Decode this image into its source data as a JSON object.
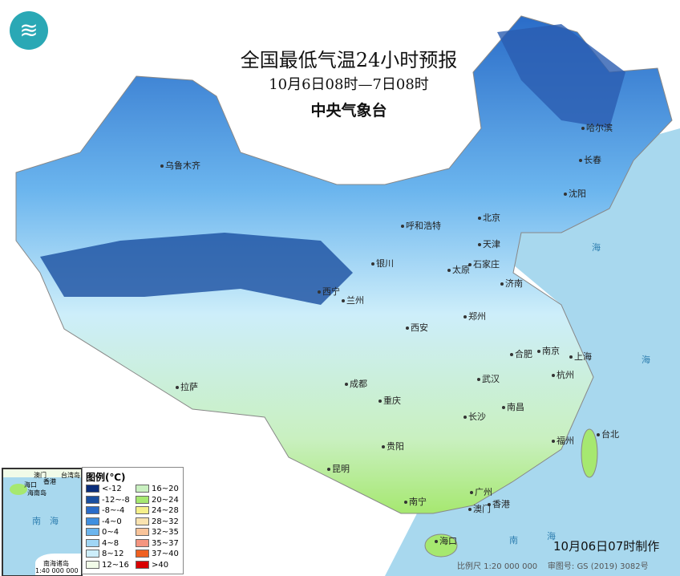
{
  "header": {
    "title": "全国最低气温24小时预报",
    "period": "10月6日08时—7日08时",
    "issuer": "中央气象台"
  },
  "logo": {
    "icon": "cma-logo-icon"
  },
  "cities": [
    "乌鲁木齐",
    "哈尔滨",
    "长春",
    "沈阳",
    "呼和浩特",
    "北京",
    "天津",
    "银川",
    "太原",
    "石家庄",
    "济南",
    "西宁",
    "兰州",
    "西安",
    "郑州",
    "合肥",
    "南京",
    "上海",
    "成都",
    "武汉",
    "杭州",
    "重庆",
    "拉萨",
    "长沙",
    "南昌",
    "贵阳",
    "福州",
    "台北",
    "昆明",
    "南宁",
    "广州",
    "香港",
    "澳门",
    "海口"
  ],
  "sea_labels": [
    "海",
    "海",
    "南",
    "海"
  ],
  "legend": {
    "title": "图例(℃)",
    "items": [
      {
        "label": "<-12",
        "color": "#0a2d7a"
      },
      {
        "label": "-12~-8",
        "color": "#1a4fa0"
      },
      {
        "label": "-8~-4",
        "color": "#2a6cc8"
      },
      {
        "label": "-4~0",
        "color": "#3f8fe0"
      },
      {
        "label": "0~4",
        "color": "#6bb5ee"
      },
      {
        "label": "4~8",
        "color": "#a0d6f5"
      },
      {
        "label": "8~12",
        "color": "#cdeefa"
      },
      {
        "label": "12~16",
        "color": "#f1fbe8"
      },
      {
        "label": "16~20",
        "color": "#c9f0c0"
      },
      {
        "label": "20~24",
        "color": "#a6e870"
      },
      {
        "label": "24~28",
        "color": "#f5f08a"
      },
      {
        "label": "28~32",
        "color": "#f9e3b0"
      },
      {
        "label": "32~35",
        "color": "#f9c49a"
      },
      {
        "label": "35~37",
        "color": "#f49580"
      },
      {
        "label": "37~40",
        "color": "#f06020"
      },
      {
        "label": ">40",
        "color": "#d80000"
      }
    ]
  },
  "inset": {
    "labels": [
      "澳门",
      "香港",
      "台湾岛",
      "海口",
      "海南岛",
      "南",
      "海",
      "南海诸岛"
    ],
    "scale": "1:40 000 000"
  },
  "footer": {
    "made": "10月06日07时制作",
    "scale": "比例尺 1:20 000 000",
    "approval": "审图号: GS (2019) 3082号"
  }
}
